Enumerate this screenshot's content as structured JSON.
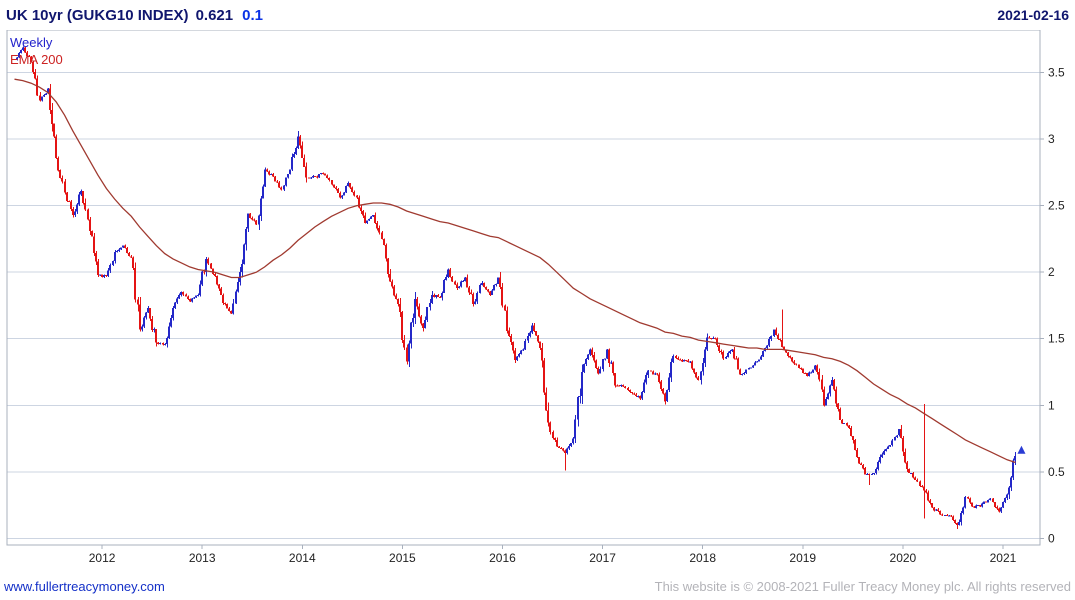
{
  "header": {
    "instrument": "UK 10yr (GUKG10 INDEX)",
    "last_price": "0.621",
    "change": "0.1",
    "date": "2021-02-16"
  },
  "legend": {
    "timeframe": "Weekly",
    "overlay": "EMA 200"
  },
  "footer": {
    "site_link": "www.fullertreacymoney.com",
    "copyright": "This website is © 2008-2021 Fuller Treacy Money plc. All rights reserved"
  },
  "colors": {
    "grid": "#cdd5e2",
    "axis": "#a8b0bd",
    "tick_text": "#222222",
    "title_navy": "#10166e",
    "change_blue": "#0a32e6",
    "legend_weekly": "#2222cc",
    "legend_ema": "#cc2222",
    "candle_up": "#2428c8",
    "candle_down": "#e41414",
    "ema_line": "#a03a30",
    "arrow": "#2a3cd4",
    "link": "#1430c8",
    "copyright_gray": "#b3b3b8"
  },
  "chart_data": {
    "type": "candlestick",
    "title": "UK 10yr (GUKG10 INDEX)",
    "timeframe": "Weekly",
    "overlay": "EMA 200",
    "last_value": 0.621,
    "change": 0.1,
    "as_of_date": "2021-02-16",
    "grid": "horizontal",
    "legend_position": "top-left",
    "x_ticks": [
      2012,
      2013,
      2014,
      2015,
      2016,
      2017,
      2018,
      2019,
      2020,
      2021
    ],
    "y_ticks": [
      0,
      0.5,
      1,
      1.5,
      2,
      2.5,
      3,
      3.5
    ],
    "xlim": [
      2011.05,
      2021.37
    ],
    "ylim": [
      -0.05,
      3.82
    ],
    "y_axis_side": "right",
    "series": [
      {
        "name": "UK 10yr gilt yield (weekly candles, monthly close samples)",
        "color_up": "#2428c8",
        "color_down": "#e41414",
        "points": [
          [
            2011.125,
            3.6
          ],
          [
            2011.208,
            3.69
          ],
          [
            2011.292,
            3.58
          ],
          [
            2011.375,
            3.29
          ],
          [
            2011.458,
            3.38
          ],
          [
            2011.542,
            2.86
          ],
          [
            2011.625,
            2.6
          ],
          [
            2011.708,
            2.43
          ],
          [
            2011.792,
            2.61
          ],
          [
            2011.875,
            2.31
          ],
          [
            2011.958,
            1.98
          ],
          [
            2012.042,
            1.97
          ],
          [
            2012.125,
            2.15
          ],
          [
            2012.208,
            2.2
          ],
          [
            2012.292,
            2.11
          ],
          [
            2012.375,
            1.57
          ],
          [
            2012.458,
            1.73
          ],
          [
            2012.542,
            1.47
          ],
          [
            2012.625,
            1.46
          ],
          [
            2012.708,
            1.73
          ],
          [
            2012.792,
            1.85
          ],
          [
            2012.875,
            1.78
          ],
          [
            2012.958,
            1.83
          ],
          [
            2013.042,
            2.1
          ],
          [
            2013.125,
            1.97
          ],
          [
            2013.208,
            1.77
          ],
          [
            2013.292,
            1.69
          ],
          [
            2013.375,
            2.0
          ],
          [
            2013.458,
            2.44
          ],
          [
            2013.542,
            2.36
          ],
          [
            2013.625,
            2.77
          ],
          [
            2013.708,
            2.72
          ],
          [
            2013.792,
            2.62
          ],
          [
            2013.875,
            2.77
          ],
          [
            2013.958,
            3.02
          ],
          [
            2014.042,
            2.71
          ],
          [
            2014.125,
            2.72
          ],
          [
            2014.208,
            2.74
          ],
          [
            2014.292,
            2.66
          ],
          [
            2014.375,
            2.56
          ],
          [
            2014.458,
            2.67
          ],
          [
            2014.542,
            2.56
          ],
          [
            2014.625,
            2.37
          ],
          [
            2014.708,
            2.43
          ],
          [
            2014.792,
            2.25
          ],
          [
            2014.875,
            1.93
          ],
          [
            2014.958,
            1.76
          ],
          [
            2015.042,
            1.33
          ],
          [
            2015.125,
            1.8
          ],
          [
            2015.208,
            1.58
          ],
          [
            2015.292,
            1.83
          ],
          [
            2015.375,
            1.81
          ],
          [
            2015.458,
            2.02
          ],
          [
            2015.542,
            1.88
          ],
          [
            2015.625,
            1.96
          ],
          [
            2015.708,
            1.76
          ],
          [
            2015.792,
            1.92
          ],
          [
            2015.875,
            1.83
          ],
          [
            2015.958,
            1.96
          ],
          [
            2016.042,
            1.56
          ],
          [
            2016.125,
            1.34
          ],
          [
            2016.208,
            1.42
          ],
          [
            2016.292,
            1.6
          ],
          [
            2016.375,
            1.43
          ],
          [
            2016.458,
            0.87
          ],
          [
            2016.542,
            0.69
          ],
          [
            2016.625,
            0.64
          ],
          [
            2016.708,
            0.75
          ],
          [
            2016.792,
            1.25
          ],
          [
            2016.875,
            1.42
          ],
          [
            2016.958,
            1.24
          ],
          [
            2017.042,
            1.42
          ],
          [
            2017.125,
            1.15
          ],
          [
            2017.208,
            1.14
          ],
          [
            2017.292,
            1.09
          ],
          [
            2017.375,
            1.05
          ],
          [
            2017.458,
            1.26
          ],
          [
            2017.542,
            1.23
          ],
          [
            2017.625,
            1.03
          ],
          [
            2017.708,
            1.37
          ],
          [
            2017.792,
            1.33
          ],
          [
            2017.875,
            1.33
          ],
          [
            2017.958,
            1.19
          ],
          [
            2018.042,
            1.51
          ],
          [
            2018.125,
            1.5
          ],
          [
            2018.208,
            1.35
          ],
          [
            2018.292,
            1.42
          ],
          [
            2018.375,
            1.23
          ],
          [
            2018.458,
            1.28
          ],
          [
            2018.542,
            1.33
          ],
          [
            2018.625,
            1.43
          ],
          [
            2018.708,
            1.57
          ],
          [
            2018.792,
            1.44
          ],
          [
            2018.875,
            1.36
          ],
          [
            2018.958,
            1.28
          ],
          [
            2019.042,
            1.22
          ],
          [
            2019.125,
            1.3
          ],
          [
            2019.208,
            1.0
          ],
          [
            2019.292,
            1.19
          ],
          [
            2019.375,
            0.89
          ],
          [
            2019.458,
            0.83
          ],
          [
            2019.542,
            0.61
          ],
          [
            2019.625,
            0.48
          ],
          [
            2019.708,
            0.49
          ],
          [
            2019.792,
            0.63
          ],
          [
            2019.875,
            0.7
          ],
          [
            2019.958,
            0.82
          ],
          [
            2020.042,
            0.52
          ],
          [
            2020.125,
            0.44
          ],
          [
            2020.208,
            0.36
          ],
          [
            2020.292,
            0.23
          ],
          [
            2020.375,
            0.18
          ],
          [
            2020.458,
            0.17
          ],
          [
            2020.542,
            0.1
          ],
          [
            2020.625,
            0.31
          ],
          [
            2020.708,
            0.23
          ],
          [
            2020.792,
            0.26
          ],
          [
            2020.875,
            0.3
          ],
          [
            2020.958,
            0.2
          ],
          [
            2021.042,
            0.33
          ],
          [
            2021.125,
            0.62
          ]
        ]
      },
      {
        "name": "EMA 200",
        "color": "#a03a30",
        "points": [
          [
            2011.125,
            3.45
          ],
          [
            2011.208,
            3.44
          ],
          [
            2011.292,
            3.42
          ],
          [
            2011.375,
            3.39
          ],
          [
            2011.458,
            3.35
          ],
          [
            2011.542,
            3.28
          ],
          [
            2011.625,
            3.18
          ],
          [
            2011.708,
            3.06
          ],
          [
            2011.792,
            2.95
          ],
          [
            2011.875,
            2.84
          ],
          [
            2011.958,
            2.73
          ],
          [
            2012.042,
            2.63
          ],
          [
            2012.125,
            2.55
          ],
          [
            2012.208,
            2.48
          ],
          [
            2012.292,
            2.42
          ],
          [
            2012.375,
            2.34
          ],
          [
            2012.458,
            2.27
          ],
          [
            2012.542,
            2.2
          ],
          [
            2012.625,
            2.14
          ],
          [
            2012.708,
            2.1
          ],
          [
            2012.792,
            2.07
          ],
          [
            2012.875,
            2.04
          ],
          [
            2012.958,
            2.02
          ],
          [
            2013.042,
            2.01
          ],
          [
            2013.125,
            2.0
          ],
          [
            2013.208,
            1.98
          ],
          [
            2013.292,
            1.96
          ],
          [
            2013.375,
            1.96
          ],
          [
            2013.458,
            1.98
          ],
          [
            2013.542,
            2.0
          ],
          [
            2013.625,
            2.04
          ],
          [
            2013.708,
            2.09
          ],
          [
            2013.792,
            2.13
          ],
          [
            2013.875,
            2.18
          ],
          [
            2013.958,
            2.24
          ],
          [
            2014.042,
            2.29
          ],
          [
            2014.125,
            2.34
          ],
          [
            2014.208,
            2.38
          ],
          [
            2014.292,
            2.42
          ],
          [
            2014.375,
            2.45
          ],
          [
            2014.458,
            2.48
          ],
          [
            2014.542,
            2.5
          ],
          [
            2014.625,
            2.51
          ],
          [
            2014.708,
            2.52
          ],
          [
            2014.792,
            2.52
          ],
          [
            2014.875,
            2.51
          ],
          [
            2014.958,
            2.49
          ],
          [
            2015.042,
            2.46
          ],
          [
            2015.125,
            2.44
          ],
          [
            2015.208,
            2.42
          ],
          [
            2015.292,
            2.4
          ],
          [
            2015.375,
            2.38
          ],
          [
            2015.458,
            2.37
          ],
          [
            2015.542,
            2.35
          ],
          [
            2015.625,
            2.33
          ],
          [
            2015.708,
            2.31
          ],
          [
            2015.792,
            2.29
          ],
          [
            2015.875,
            2.27
          ],
          [
            2015.958,
            2.26
          ],
          [
            2016.042,
            2.23
          ],
          [
            2016.125,
            2.2
          ],
          [
            2016.208,
            2.17
          ],
          [
            2016.292,
            2.14
          ],
          [
            2016.375,
            2.11
          ],
          [
            2016.458,
            2.06
          ],
          [
            2016.542,
            2.0
          ],
          [
            2016.625,
            1.94
          ],
          [
            2016.708,
            1.88
          ],
          [
            2016.792,
            1.84
          ],
          [
            2016.875,
            1.8
          ],
          [
            2016.958,
            1.77
          ],
          [
            2017.042,
            1.74
          ],
          [
            2017.125,
            1.71
          ],
          [
            2017.208,
            1.68
          ],
          [
            2017.292,
            1.65
          ],
          [
            2017.375,
            1.62
          ],
          [
            2017.458,
            1.6
          ],
          [
            2017.542,
            1.58
          ],
          [
            2017.625,
            1.55
          ],
          [
            2017.708,
            1.54
          ],
          [
            2017.792,
            1.52
          ],
          [
            2017.875,
            1.51
          ],
          [
            2017.958,
            1.49
          ],
          [
            2018.042,
            1.48
          ],
          [
            2018.125,
            1.47
          ],
          [
            2018.208,
            1.46
          ],
          [
            2018.292,
            1.45
          ],
          [
            2018.375,
            1.44
          ],
          [
            2018.458,
            1.43
          ],
          [
            2018.542,
            1.43
          ],
          [
            2018.625,
            1.42
          ],
          [
            2018.708,
            1.42
          ],
          [
            2018.792,
            1.42
          ],
          [
            2018.875,
            1.41
          ],
          [
            2018.958,
            1.4
          ],
          [
            2019.042,
            1.39
          ],
          [
            2019.125,
            1.38
          ],
          [
            2019.208,
            1.36
          ],
          [
            2019.292,
            1.35
          ],
          [
            2019.375,
            1.33
          ],
          [
            2019.458,
            1.3
          ],
          [
            2019.542,
            1.26
          ],
          [
            2019.625,
            1.21
          ],
          [
            2019.708,
            1.16
          ],
          [
            2019.792,
            1.12
          ],
          [
            2019.875,
            1.08
          ],
          [
            2019.958,
            1.05
          ],
          [
            2020.042,
            1.01
          ],
          [
            2020.125,
            0.98
          ],
          [
            2020.208,
            0.94
          ],
          [
            2020.292,
            0.9
          ],
          [
            2020.375,
            0.86
          ],
          [
            2020.458,
            0.82
          ],
          [
            2020.542,
            0.78
          ],
          [
            2020.625,
            0.74
          ],
          [
            2020.708,
            0.71
          ],
          [
            2020.792,
            0.68
          ],
          [
            2020.875,
            0.65
          ],
          [
            2020.958,
            0.62
          ],
          [
            2021.042,
            0.59
          ],
          [
            2021.125,
            0.57
          ]
        ]
      }
    ],
    "special_bars": [
      {
        "x": 2018.79,
        "high": 1.72
      },
      {
        "x": 2020.21,
        "high": 1.01,
        "low": 0.15
      },
      {
        "x": 2016.63,
        "low": 0.51
      },
      {
        "x": 2019.67,
        "low": 0.4
      },
      {
        "x": 2020.55,
        "low": 0.07
      },
      {
        "x": 2013.96,
        "high": 3.06
      }
    ],
    "last_point": {
      "x": 2021.125,
      "y": 0.621
    }
  }
}
